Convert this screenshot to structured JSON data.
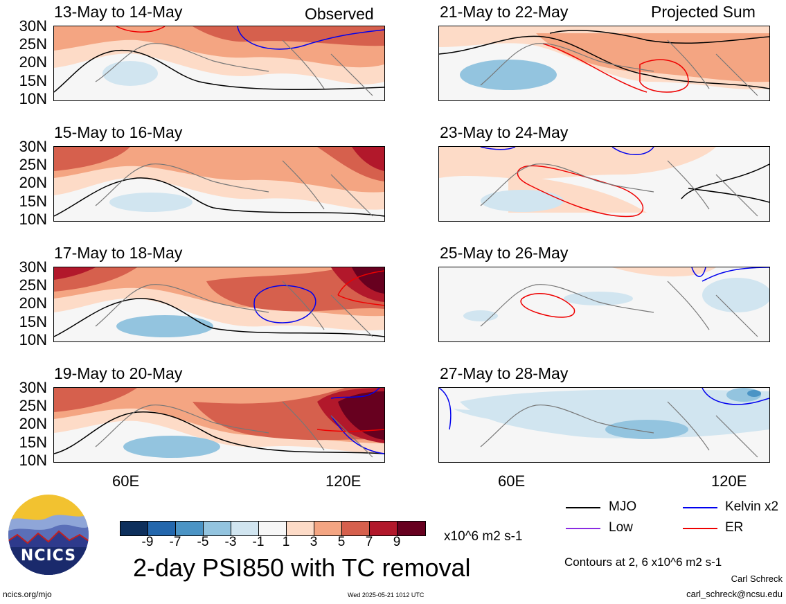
{
  "observed_label": "Observed",
  "projected_label": "Projected Sum",
  "panels_left": [
    {
      "title": "13-May to 14-May"
    },
    {
      "title": "15-May to 16-May"
    },
    {
      "title": "17-May to 18-May"
    },
    {
      "title": "19-May to 20-May"
    }
  ],
  "panels_right": [
    {
      "title": "21-May to 22-May"
    },
    {
      "title": "23-May to 24-May"
    },
    {
      "title": "25-May to 26-May"
    },
    {
      "title": "27-May to 28-May"
    }
  ],
  "lat_labels": [
    "30N",
    "25N",
    "20N",
    "15N",
    "10N"
  ],
  "lon_labels": [
    "60E",
    "120E"
  ],
  "colorbar": {
    "colors": [
      "#0d2f5c",
      "#2367ad",
      "#4b94c5",
      "#93c4df",
      "#d1e5f0",
      "#f7f7f7",
      "#fddbc7",
      "#f4a582",
      "#d6604d",
      "#b2182b",
      "#67001f"
    ],
    "ticks": [
      "-9",
      "-7",
      "-5",
      "-3",
      "-1",
      "1",
      "3",
      "5",
      "7",
      "9"
    ],
    "units": "x10^6 m2 s-1"
  },
  "main_title": "2-day PSI850 with TC removal",
  "legend": {
    "mjo": {
      "label": "MJO",
      "color": "#000000"
    },
    "low": {
      "label": "Low",
      "color": "#8a2be2"
    },
    "kelvin": {
      "label": "Kelvin x2",
      "color": "#0000ee"
    },
    "er": {
      "label": "ER",
      "color": "#ee0000"
    }
  },
  "contours_note": "Contours at 2, 6 x10^6 m2 s-1",
  "author": "Carl Schreck",
  "email": "carl_schreck@ncsu.edu",
  "url": "ncics.org/mjo",
  "timestamp": "Wed 2025-05-21 1012 UTC",
  "logo_text": "NCICS"
}
